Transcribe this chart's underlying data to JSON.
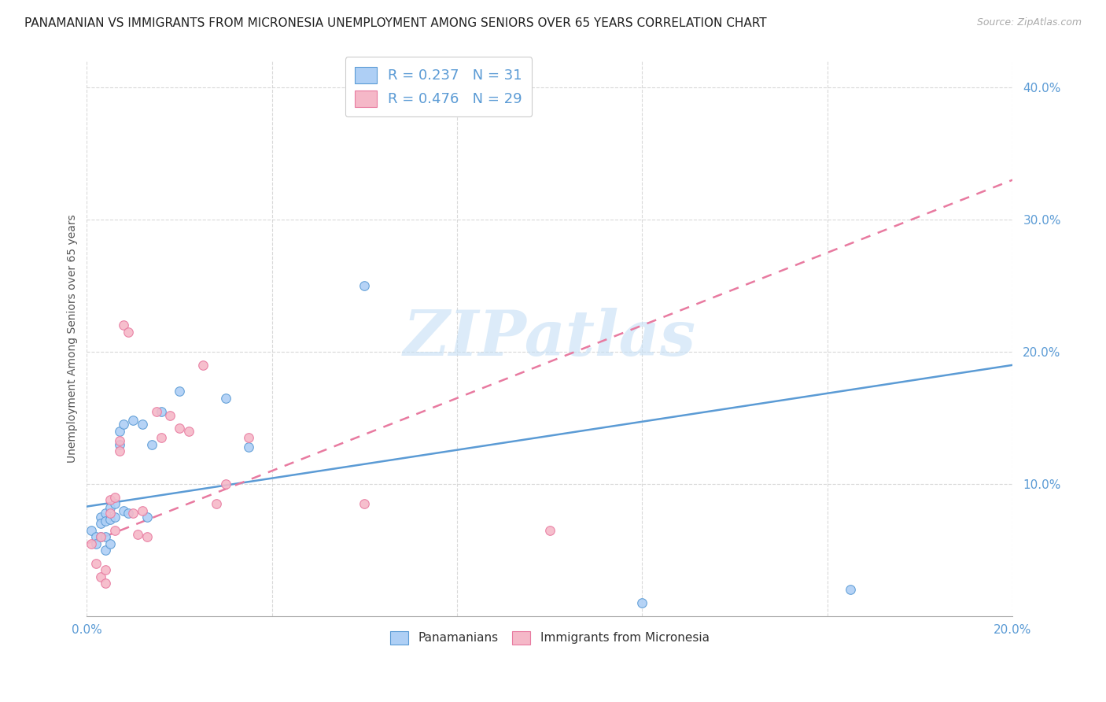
{
  "title": "PANAMANIAN VS IMMIGRANTS FROM MICRONESIA UNEMPLOYMENT AMONG SENIORS OVER 65 YEARS CORRELATION CHART",
  "source": "Source: ZipAtlas.com",
  "ylabel": "Unemployment Among Seniors over 65 years",
  "xlim": [
    0.0,
    0.2
  ],
  "ylim": [
    0.0,
    0.42
  ],
  "ytick_vals": [
    0.1,
    0.2,
    0.3,
    0.4
  ],
  "xtick_vals": [
    0.0,
    0.04,
    0.08,
    0.12,
    0.16,
    0.2
  ],
  "legend_blue_label": "R = 0.237   N = 31",
  "legend_pink_label": "R = 0.476   N = 29",
  "legend_bottom_blue": "Panamanians",
  "legend_bottom_pink": "Immigrants from Micronesia",
  "blue_scatter_x": [
    0.001,
    0.002,
    0.002,
    0.003,
    0.003,
    0.003,
    0.004,
    0.004,
    0.004,
    0.004,
    0.005,
    0.005,
    0.005,
    0.006,
    0.006,
    0.007,
    0.007,
    0.008,
    0.008,
    0.009,
    0.01,
    0.012,
    0.013,
    0.014,
    0.016,
    0.02,
    0.03,
    0.035,
    0.06,
    0.12,
    0.165
  ],
  "blue_scatter_y": [
    0.065,
    0.06,
    0.055,
    0.075,
    0.07,
    0.06,
    0.078,
    0.072,
    0.06,
    0.05,
    0.082,
    0.073,
    0.055,
    0.085,
    0.075,
    0.14,
    0.13,
    0.145,
    0.08,
    0.078,
    0.148,
    0.145,
    0.075,
    0.13,
    0.155,
    0.17,
    0.165,
    0.128,
    0.25,
    0.01,
    0.02
  ],
  "pink_scatter_x": [
    0.001,
    0.002,
    0.003,
    0.003,
    0.004,
    0.004,
    0.005,
    0.005,
    0.006,
    0.006,
    0.007,
    0.007,
    0.008,
    0.009,
    0.01,
    0.011,
    0.012,
    0.013,
    0.015,
    0.016,
    0.018,
    0.02,
    0.022,
    0.025,
    0.028,
    0.03,
    0.035,
    0.06,
    0.1
  ],
  "pink_scatter_y": [
    0.055,
    0.04,
    0.06,
    0.03,
    0.035,
    0.025,
    0.088,
    0.078,
    0.09,
    0.065,
    0.133,
    0.125,
    0.22,
    0.215,
    0.078,
    0.062,
    0.08,
    0.06,
    0.155,
    0.135,
    0.152,
    0.142,
    0.14,
    0.19,
    0.085,
    0.1,
    0.135,
    0.085,
    0.065
  ],
  "blue_line_x": [
    0.0,
    0.2
  ],
  "blue_line_y": [
    0.083,
    0.19
  ],
  "pink_line_x": [
    0.0,
    0.2
  ],
  "pink_line_y": [
    0.055,
    0.33
  ],
  "blue_color": "#aecff5",
  "pink_color": "#f5b8c8",
  "blue_line_color": "#5b9bd5",
  "pink_line_color": "#e87aa0",
  "background_color": "#ffffff",
  "watermark_text": "ZIPatlas",
  "watermark_color": "#c5dff5",
  "title_fontsize": 11,
  "axis_label_fontsize": 10,
  "tick_fontsize": 11,
  "scatter_size": 70
}
